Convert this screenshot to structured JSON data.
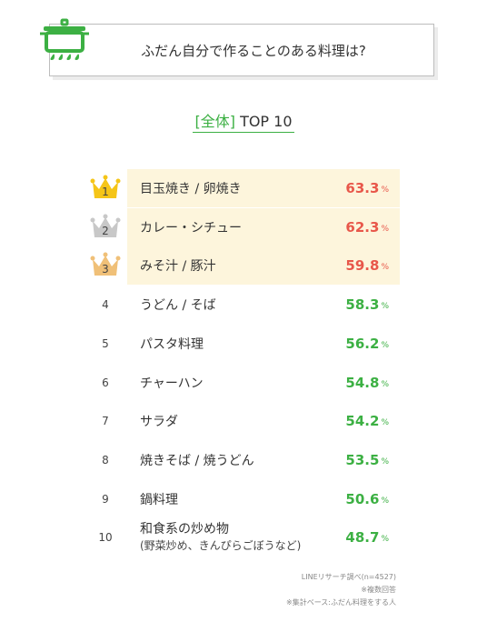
{
  "question": "ふだん自分で作ることのある料理は?",
  "subtitle": {
    "bracket_open": "[",
    "tag": "全体",
    "bracket_close": "]",
    "label": "TOP 10"
  },
  "colors": {
    "accent": "#3cb043",
    "top_value": "#e8574a",
    "value": "#3cb043",
    "gold": "#f5c518",
    "silver": "#c8c8c8",
    "bronze": "#f0c078",
    "highlight_bg": "#fdf5dc"
  },
  "chart_data": {
    "type": "table",
    "title": "ふだん自分で作ることのある料理は?",
    "unit": "%",
    "rows": [
      {
        "rank": "1",
        "label": "目玉焼き / 卵焼き",
        "value": 63.3,
        "value_text": "63.3"
      },
      {
        "rank": "2",
        "label": "カレー・シチュー",
        "value": 62.3,
        "value_text": "62.3"
      },
      {
        "rank": "3",
        "label": "みそ汁 / 豚汁",
        "value": 59.8,
        "value_text": "59.8"
      },
      {
        "rank": "4",
        "label": "うどん / そば",
        "value": 58.3,
        "value_text": "58.3"
      },
      {
        "rank": "5",
        "label": "パスタ料理",
        "value": 56.2,
        "value_text": "56.2"
      },
      {
        "rank": "6",
        "label": "チャーハン",
        "value": 54.8,
        "value_text": "54.8"
      },
      {
        "rank": "7",
        "label": "サラダ",
        "value": 54.2,
        "value_text": "54.2"
      },
      {
        "rank": "8",
        "label": "焼きそば / 焼うどん",
        "value": 53.5,
        "value_text": "53.5"
      },
      {
        "rank": "9",
        "label": "鍋料理",
        "value": 50.6,
        "value_text": "50.6"
      },
      {
        "rank": "10",
        "label": "和食系の炒め物",
        "sublabel": "(野菜炒め、きんぴらごぼうなど)",
        "value": 48.7,
        "value_text": "48.7"
      }
    ]
  },
  "notes": [
    "LINEリサーチ調べ(n=4527)",
    "※複数回答",
    "※集計ベース:ふだん料理をする人"
  ]
}
